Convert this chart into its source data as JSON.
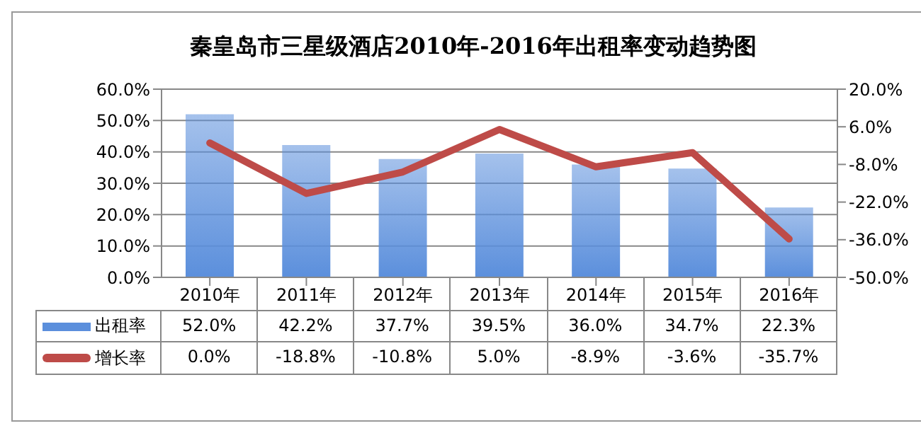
{
  "chart_data": {
    "type": "bar",
    "title": "秦皇岛市三星级酒店2010年-2016年出租率变动趋势图",
    "categories": [
      "2010年",
      "2011年",
      "2012年",
      "2013年",
      "2014年",
      "2015年",
      "2016年"
    ],
    "series": [
      {
        "name": "出租率",
        "color": "#5b8fdc",
        "values": [
          52.0,
          42.2,
          37.7,
          39.5,
          36.0,
          34.7,
          22.3
        ],
        "value_labels": [
          "52.0%",
          "42.2%",
          "37.7%",
          "39.5%",
          "36.0%",
          "34.7%",
          "22.3%"
        ]
      },
      {
        "name": "增长率",
        "type": "line",
        "axis": "y2",
        "color": "#be4b48",
        "values": [
          0.0,
          -18.8,
          -10.8,
          5.0,
          -8.9,
          -3.6,
          -35.7
        ],
        "value_labels": [
          "0.0%",
          "-18.8%",
          "-10.8%",
          "5.0%",
          "-8.9%",
          "-3.6%",
          "-35.7%"
        ]
      }
    ],
    "ylim": [
      0,
      60
    ],
    "yticks": [
      {
        "value": 0,
        "label": "0.0%"
      },
      {
        "value": 10,
        "label": "10.0%"
      },
      {
        "value": 20,
        "label": "20.0%"
      },
      {
        "value": 30,
        "label": "30.0%"
      },
      {
        "value": 40,
        "label": "40.0%"
      },
      {
        "value": 50,
        "label": "50.0%"
      },
      {
        "value": 60,
        "label": "60.0%"
      }
    ],
    "y2lim": [
      -50,
      20
    ],
    "y2ticks": [
      {
        "value": -50,
        "label": "-50.0%"
      },
      {
        "value": -36,
        "label": "-36.0%"
      },
      {
        "value": -22,
        "label": "-22.0%"
      },
      {
        "value": -8,
        "label": "-8.0%"
      },
      {
        "value": 6,
        "label": "6.0%"
      },
      {
        "value": 20,
        "label": "20.0%"
      }
    ],
    "grid": "y",
    "legend": "bottom",
    "marker": "none",
    "line_style": "solid"
  }
}
